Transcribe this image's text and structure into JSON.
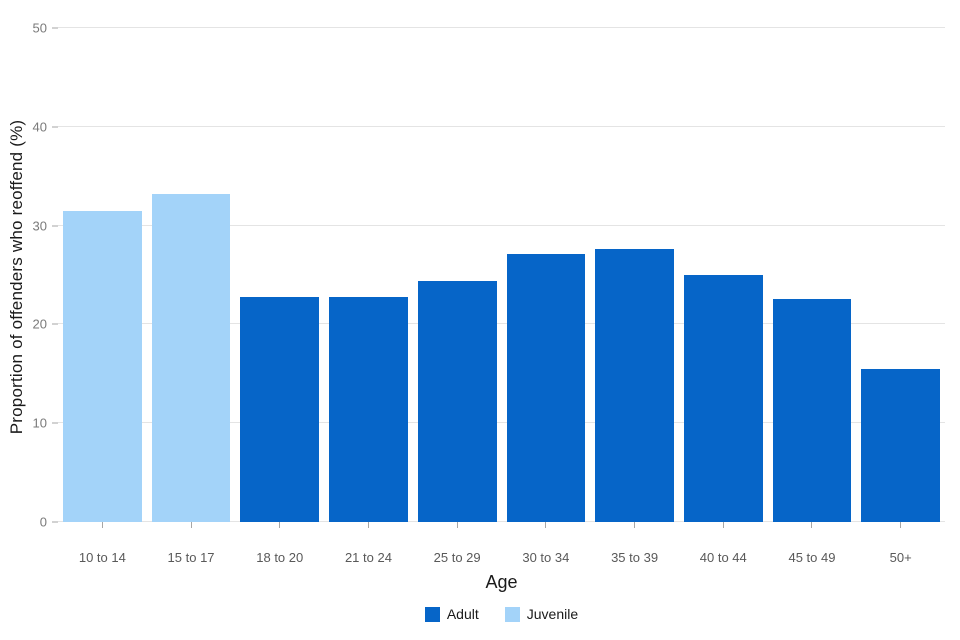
{
  "chart_data": {
    "type": "bar",
    "title": "",
    "xlabel": "Age",
    "ylabel": "Proportion of offenders who reoffend (%)",
    "ylim": [
      0,
      50
    ],
    "yticks": [
      0,
      10,
      20,
      30,
      40,
      50
    ],
    "grid": true,
    "legend_position": "bottom",
    "categories": [
      "10 to 14",
      "15 to 17",
      "18 to 20",
      "21 to 24",
      "25 to 29",
      "30 to 34",
      "35 to 39",
      "40 to 44",
      "45 to 49",
      "50+"
    ],
    "values": [
      31.5,
      33.2,
      22.8,
      22.8,
      24.4,
      27.1,
      27.6,
      25.0,
      22.6,
      15.5
    ],
    "groups": [
      "Juvenile",
      "Juvenile",
      "Adult",
      "Adult",
      "Adult",
      "Adult",
      "Adult",
      "Adult",
      "Adult",
      "Adult"
    ],
    "colors": {
      "Adult": "#0665c8",
      "Juvenile": "#a3d3f9"
    },
    "legend": [
      {
        "label": "Adult",
        "color": "#0665c8"
      },
      {
        "label": "Juvenile",
        "color": "#a3d3f9"
      }
    ]
  }
}
